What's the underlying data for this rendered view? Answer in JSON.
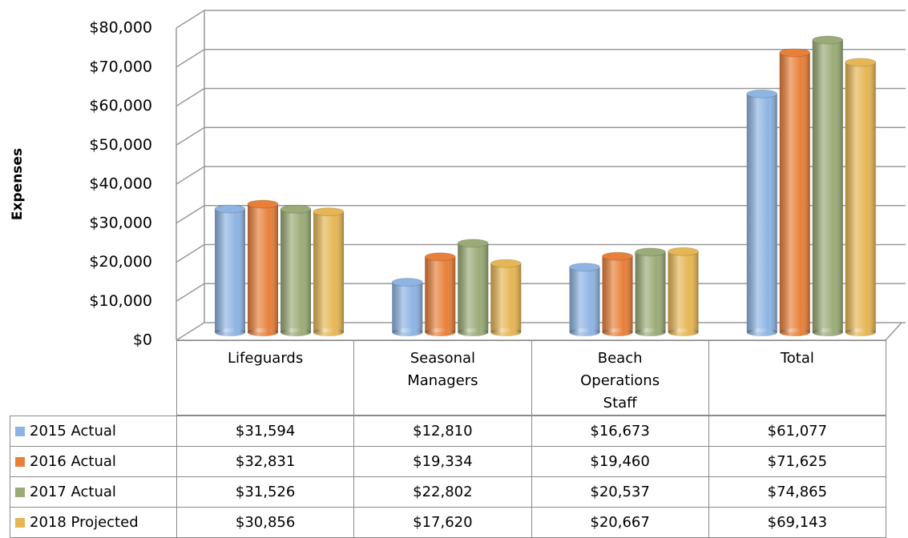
{
  "chart_data": {
    "type": "bar",
    "ylabel": "Expenses",
    "categories": [
      "Lifeguards",
      "Seasonal Managers",
      "Beach Operations Staff",
      "Total"
    ],
    "series": [
      {
        "name": "2015 Actual",
        "color": "#8eb4e3",
        "values": [
          31594,
          12810,
          16673,
          61077
        ],
        "value_labels": [
          "$31,594",
          "$12,810",
          "$16,673",
          "$61,077"
        ]
      },
      {
        "name": "2016 Actual",
        "color": "#e8803a",
        "values": [
          32831,
          19334,
          19460,
          71625
        ],
        "value_labels": [
          "$32,831",
          "$19,334",
          "$19,460",
          "$71,625"
        ]
      },
      {
        "name": "2017 Actual",
        "color": "#9bab77",
        "values": [
          31526,
          22802,
          20537,
          74865
        ],
        "value_labels": [
          "$31,526",
          "$22,802",
          "$20,537",
          "$74,865"
        ]
      },
      {
        "name": "2018 Projected",
        "color": "#e6b655",
        "values": [
          30856,
          17620,
          20667,
          69143
        ],
        "value_labels": [
          "$30,856",
          "$17,620",
          "$20,667",
          "$69,143"
        ]
      }
    ],
    "ylim": [
      0,
      80000
    ],
    "yticks": [
      {
        "value": 0,
        "label": "$0"
      },
      {
        "value": 10000,
        "label": "$10,000"
      },
      {
        "value": 20000,
        "label": "$20,000"
      },
      {
        "value": 30000,
        "label": "$30,000"
      },
      {
        "value": 40000,
        "label": "$40,000"
      },
      {
        "value": 50000,
        "label": "$50,000"
      },
      {
        "value": 60000,
        "label": "$60,000"
      },
      {
        "value": 70000,
        "label": "$70,000"
      },
      {
        "value": 80000,
        "label": "$80,000"
      }
    ],
    "grid": true
  }
}
